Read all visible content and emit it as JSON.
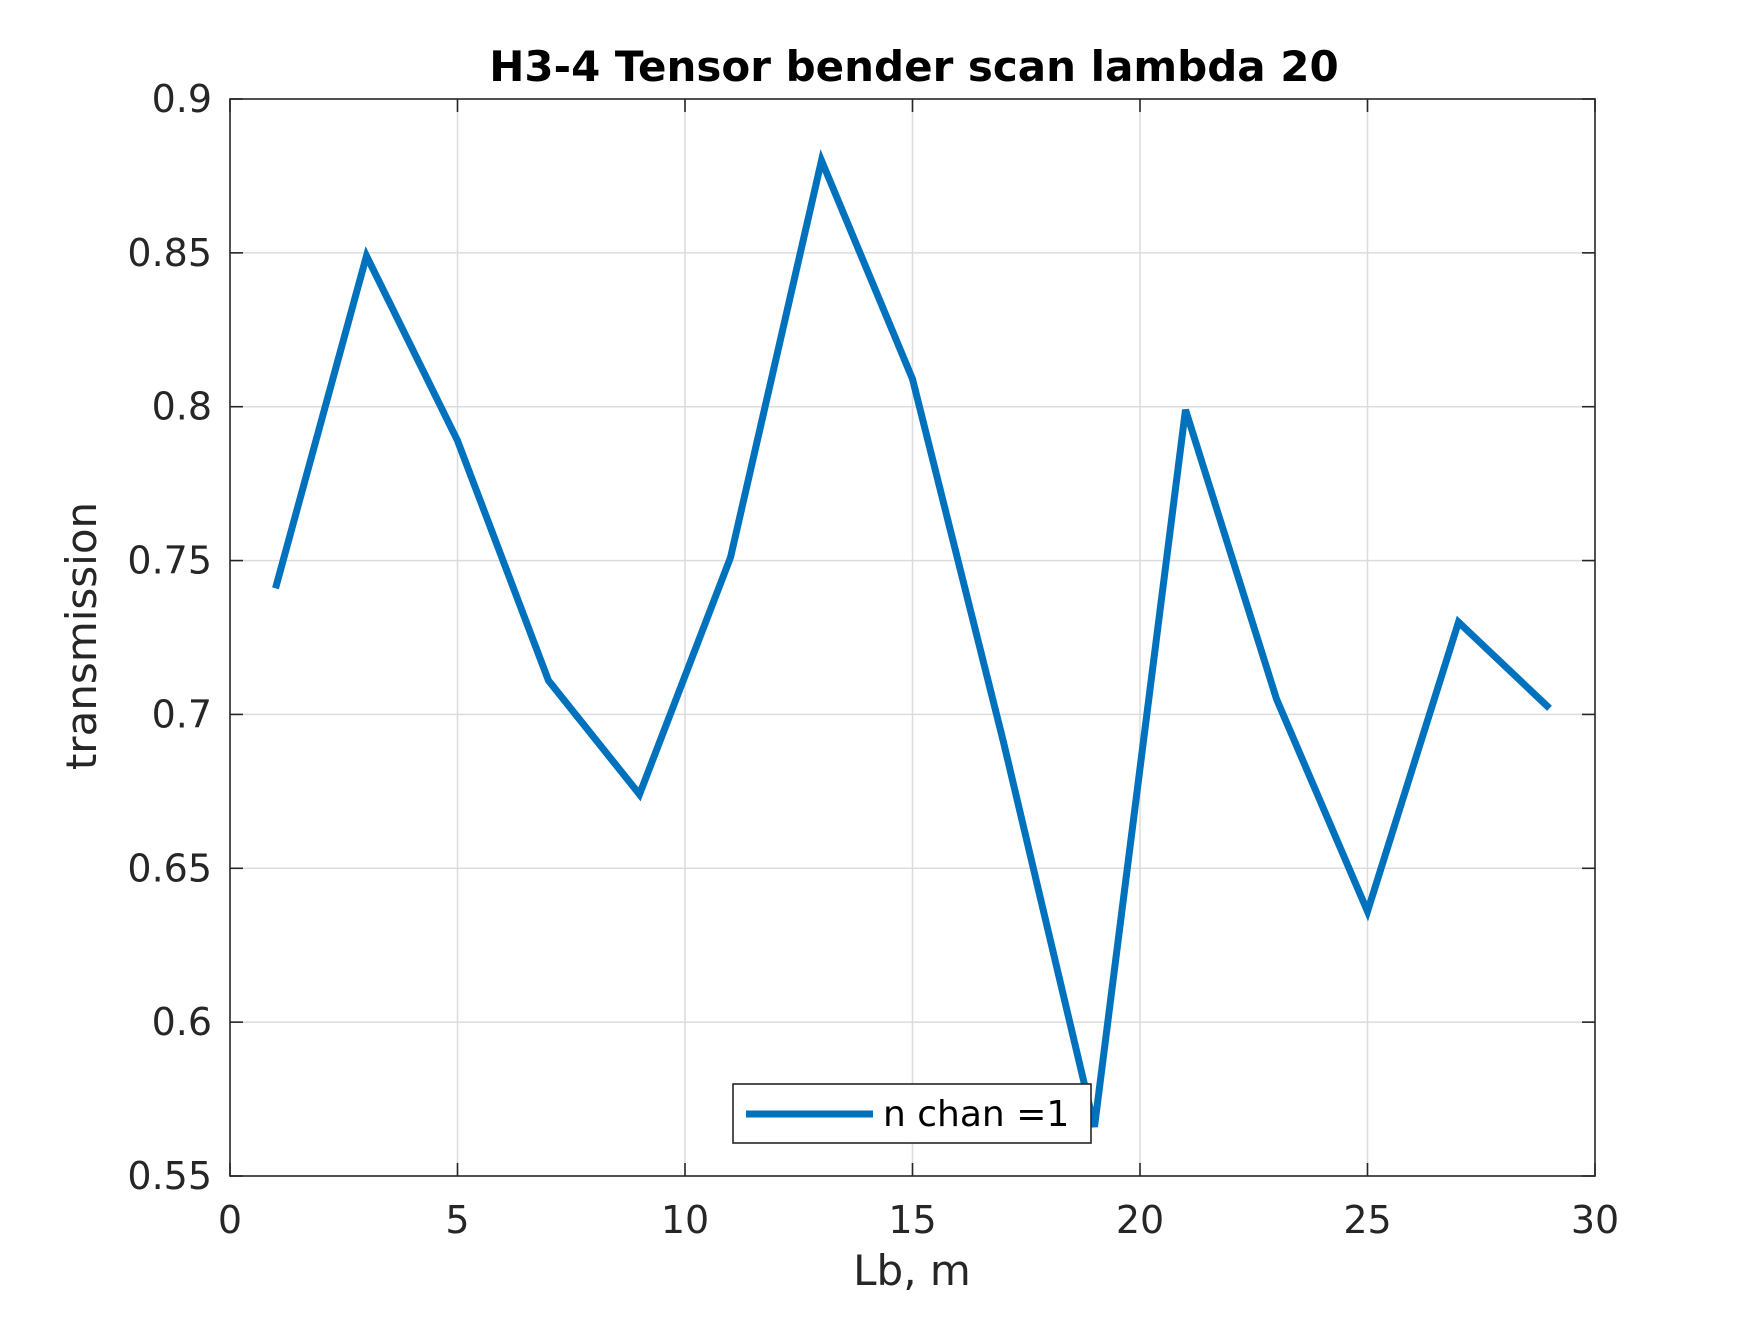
{
  "chart_data": {
    "type": "line",
    "title": "H3-4 Tensor bender scan lambda 20",
    "xlabel": "Lb, m",
    "ylabel": "transmission",
    "xlim": [
      0,
      30
    ],
    "ylim": [
      0.55,
      0.9
    ],
    "x_ticks": [
      "0",
      "5",
      "10",
      "15",
      "20",
      "25",
      "30"
    ],
    "y_ticks": [
      "0.55",
      "0.6",
      "0.65",
      "0.7",
      "0.75",
      "0.8",
      "0.85",
      "0.9"
    ],
    "grid": true,
    "legend_position": "bottom-center",
    "series": [
      {
        "name": "n chan =1",
        "color": "#0072bd",
        "x": [
          1,
          3,
          5,
          7,
          9,
          11,
          13,
          15,
          17,
          19,
          21,
          23,
          25,
          27,
          29
        ],
        "y": [
          0.741,
          0.849,
          0.789,
          0.711,
          0.674,
          0.751,
          0.88,
          0.809,
          0.691,
          0.566,
          0.799,
          0.705,
          0.636,
          0.73,
          0.702
        ]
      }
    ]
  }
}
